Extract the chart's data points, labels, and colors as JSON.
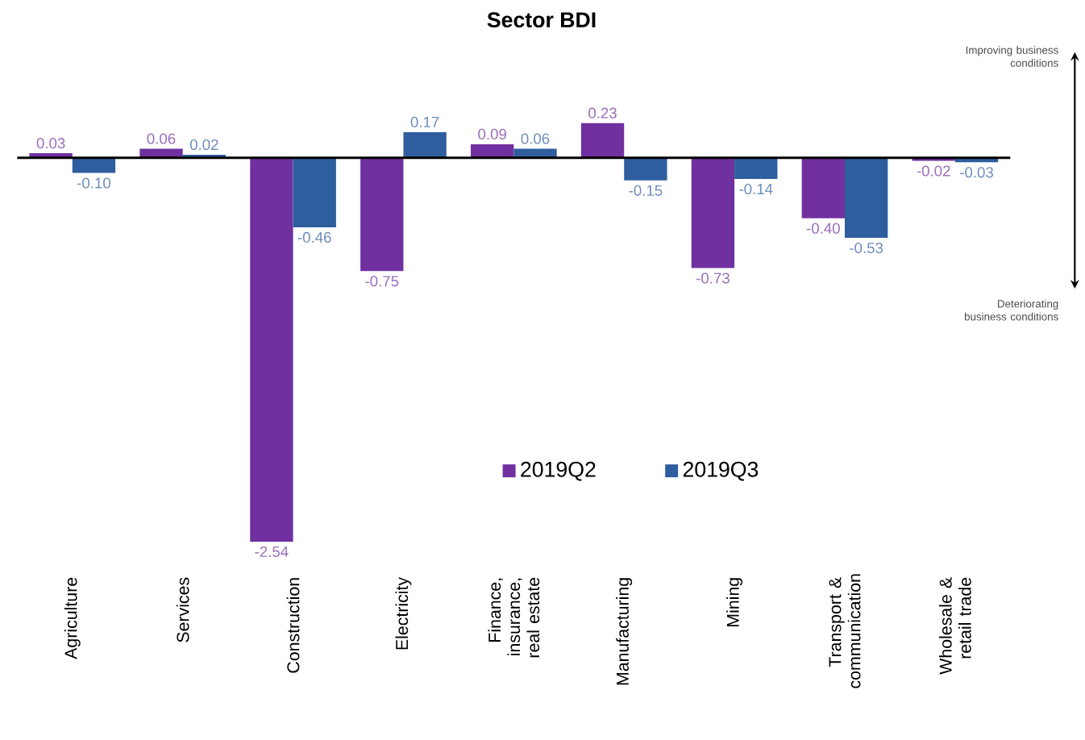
{
  "chart_data": {
    "type": "bar",
    "title": "Sector BDI",
    "categories": [
      "Agriculture",
      "Services",
      "Construction",
      "Electricity",
      "Finance, insurance, real estate",
      "Manufacturing",
      "Mining",
      "Transport & communication",
      "Wholesale & retail trade"
    ],
    "series": [
      {
        "name": "2019Q2",
        "color": "#7030a0",
        "values": [
          0.03,
          0.06,
          -2.54,
          -0.75,
          0.09,
          0.23,
          -0.73,
          -0.4,
          -0.02
        ],
        "value_labels": [
          "0.03",
          "0.06",
          "-2.54",
          "-0.75",
          "0.09",
          "0.23",
          "-0.73",
          "-0.40",
          "-0.02"
        ]
      },
      {
        "name": "2019Q3",
        "color": "#2e5e9e",
        "values": [
          -0.1,
          0.02,
          -0.46,
          0.17,
          0.06,
          -0.15,
          -0.14,
          -0.53,
          -0.03
        ],
        "value_labels": [
          "-0.10",
          "0.02",
          "-0.46",
          "0.17",
          "0.06",
          "-0.15",
          "-0.14",
          "-0.53",
          "-0.03"
        ]
      }
    ],
    "annotations": [
      "Improving business conditions",
      "Deteriorating business conditions"
    ],
    "legend": "bottom"
  }
}
